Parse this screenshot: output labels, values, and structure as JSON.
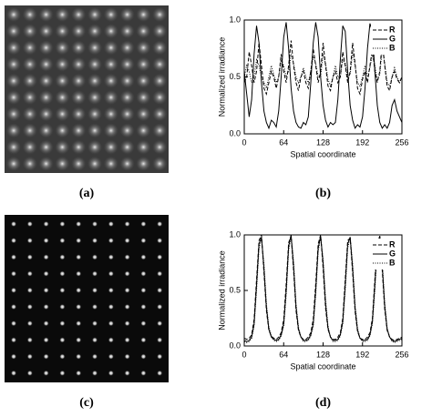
{
  "figures": [
    {
      "label": "(a)"
    },
    {
      "label": "(c)"
    }
  ],
  "chart_data": [
    {
      "type": "line",
      "label": "(b)",
      "ylabel": "Normalized irradiance",
      "xlabel": "Spatial coordinate",
      "xlim": [
        0,
        256
      ],
      "xticks": [
        0,
        64,
        128,
        192,
        256
      ],
      "ylim": [
        0,
        1
      ],
      "yticks": [
        {
          "value": 0,
          "label": "0.0"
        },
        {
          "value": 0.5,
          "label": "0.5"
        },
        {
          "value": 1,
          "label": "1.0"
        }
      ],
      "legend": "upper right",
      "x": [
        0,
        4,
        8,
        12,
        16,
        20,
        24,
        28,
        32,
        36,
        40,
        44,
        48,
        52,
        56,
        60,
        64,
        68,
        72,
        76,
        80,
        84,
        88,
        92,
        96,
        100,
        104,
        108,
        112,
        116,
        120,
        124,
        128,
        132,
        136,
        140,
        144,
        148,
        152,
        156,
        160,
        164,
        168,
        172,
        176,
        180,
        184,
        188,
        192,
        196,
        200,
        204,
        208,
        212,
        216,
        220,
        224,
        228,
        232,
        236,
        240,
        244,
        248,
        252,
        256
      ],
      "series": [
        {
          "name": "R",
          "color": "#000000",
          "style": "dashed",
          "values": [
            0.45,
            0.5,
            0.72,
            0.6,
            0.45,
            0.55,
            0.8,
            0.6,
            0.4,
            0.35,
            0.45,
            0.55,
            0.5,
            0.4,
            0.5,
            0.7,
            0.55,
            0.45,
            0.6,
            0.82,
            0.6,
            0.45,
            0.38,
            0.5,
            0.55,
            0.45,
            0.4,
            0.55,
            0.75,
            0.6,
            0.45,
            0.55,
            0.8,
            0.6,
            0.42,
            0.38,
            0.5,
            0.55,
            0.45,
            0.5,
            0.72,
            0.6,
            0.45,
            0.55,
            0.8,
            0.62,
            0.4,
            0.35,
            0.48,
            0.55,
            0.45,
            0.6,
            0.75,
            0.55,
            0.45,
            0.55,
            0.82,
            0.6,
            0.42,
            0.38,
            0.5,
            0.55,
            0.48,
            0.45,
            0.5
          ]
        },
        {
          "name": "G",
          "color": "#000000",
          "style": "solid",
          "values": [
            0.55,
            0.35,
            0.15,
            0.3,
            0.7,
            0.95,
            0.8,
            0.45,
            0.2,
            0.1,
            0.05,
            0.12,
            0.1,
            0.06,
            0.2,
            0.5,
            0.85,
            0.98,
            0.75,
            0.4,
            0.2,
            0.1,
            0.06,
            0.05,
            0.1,
            0.08,
            0.15,
            0.45,
            0.8,
            0.98,
            0.85,
            0.5,
            0.25,
            0.12,
            0.06,
            0.1,
            0.08,
            0.1,
            0.3,
            0.65,
            0.95,
            0.9,
            0.55,
            0.25,
            0.12,
            0.05,
            0.08,
            0.06,
            0.15,
            0.4,
            0.75,
            0.97,
            0.9,
            0.55,
            0.25,
            0.1,
            0.05,
            0.08,
            0.05,
            0.1,
            0.25,
            0.3,
            0.2,
            0.15,
            0.1
          ]
        },
        {
          "name": "B",
          "color": "#000000",
          "style": "dotted",
          "values": [
            0.5,
            0.6,
            0.55,
            0.45,
            0.5,
            0.65,
            0.6,
            0.5,
            0.45,
            0.4,
            0.5,
            0.6,
            0.52,
            0.45,
            0.5,
            0.65,
            0.6,
            0.5,
            0.55,
            0.7,
            0.62,
            0.5,
            0.45,
            0.5,
            0.58,
            0.5,
            0.45,
            0.55,
            0.68,
            0.62,
            0.5,
            0.5,
            0.7,
            0.62,
            0.48,
            0.42,
            0.5,
            0.6,
            0.5,
            0.5,
            0.65,
            0.62,
            0.5,
            0.52,
            0.72,
            0.6,
            0.45,
            0.42,
            0.5,
            0.6,
            0.5,
            0.58,
            0.7,
            0.6,
            0.48,
            0.52,
            0.75,
            0.62,
            0.45,
            0.42,
            0.5,
            0.58,
            0.5,
            0.45,
            0.5
          ]
        }
      ]
    },
    {
      "type": "line",
      "label": "(d)",
      "ylabel": "Normalized irradiance",
      "xlabel": "Spatial coordinate",
      "xlim": [
        0,
        256
      ],
      "xticks": [
        0,
        64,
        128,
        192,
        256
      ],
      "ylim": [
        0,
        1
      ],
      "yticks": [
        {
          "value": 0,
          "label": "0.0"
        },
        {
          "value": 0.5,
          "label": "0.5"
        },
        {
          "value": 1,
          "label": "1.0"
        }
      ],
      "legend": "upper right",
      "x": [
        0,
        4,
        8,
        12,
        16,
        20,
        24,
        28,
        32,
        36,
        40,
        44,
        48,
        52,
        56,
        60,
        64,
        68,
        72,
        76,
        80,
        84,
        88,
        92,
        96,
        100,
        104,
        108,
        112,
        116,
        120,
        124,
        128,
        132,
        136,
        140,
        144,
        148,
        152,
        156,
        160,
        164,
        168,
        172,
        176,
        180,
        184,
        188,
        192,
        196,
        200,
        204,
        208,
        212,
        216,
        220,
        224,
        228,
        232,
        236,
        240,
        244,
        248,
        252,
        256
      ],
      "series": [
        {
          "name": "R",
          "color": "#000000",
          "style": "dashed",
          "values": [
            0.07,
            0.06,
            0.07,
            0.1,
            0.24,
            0.6,
            0.95,
            1.0,
            0.66,
            0.32,
            0.14,
            0.09,
            0.07,
            0.06,
            0.08,
            0.12,
            0.24,
            0.56,
            0.93,
            0.99,
            0.68,
            0.32,
            0.14,
            0.08,
            0.06,
            0.06,
            0.08,
            0.12,
            0.24,
            0.56,
            0.92,
            1.0,
            0.7,
            0.34,
            0.15,
            0.08,
            0.06,
            0.06,
            0.08,
            0.12,
            0.25,
            0.6,
            0.95,
            0.97,
            0.66,
            0.31,
            0.13,
            0.07,
            0.06,
            0.06,
            0.08,
            0.12,
            0.25,
            0.6,
            0.95,
            0.98,
            0.68,
            0.33,
            0.14,
            0.08,
            0.06,
            0.05,
            0.06,
            0.07,
            0.08
          ]
        },
        {
          "name": "G",
          "color": "#000000",
          "style": "solid",
          "values": [
            0.05,
            0.04,
            0.05,
            0.08,
            0.2,
            0.55,
            0.92,
            0.98,
            0.7,
            0.35,
            0.15,
            0.08,
            0.06,
            0.05,
            0.06,
            0.1,
            0.2,
            0.5,
            0.9,
            1.0,
            0.72,
            0.35,
            0.15,
            0.08,
            0.05,
            0.05,
            0.06,
            0.1,
            0.2,
            0.5,
            0.88,
            0.99,
            0.75,
            0.38,
            0.16,
            0.08,
            0.05,
            0.05,
            0.06,
            0.1,
            0.22,
            0.55,
            0.92,
            0.98,
            0.7,
            0.34,
            0.14,
            0.07,
            0.05,
            0.05,
            0.06,
            0.1,
            0.22,
            0.55,
            0.92,
            0.99,
            0.72,
            0.36,
            0.15,
            0.08,
            0.05,
            0.04,
            0.05,
            0.06,
            0.07
          ]
        },
        {
          "name": "B",
          "color": "#000000",
          "style": "dotted",
          "values": [
            0.04,
            0.03,
            0.04,
            0.07,
            0.18,
            0.5,
            0.88,
            0.97,
            0.74,
            0.38,
            0.17,
            0.09,
            0.05,
            0.04,
            0.05,
            0.09,
            0.18,
            0.46,
            0.86,
            0.99,
            0.76,
            0.38,
            0.17,
            0.08,
            0.04,
            0.04,
            0.05,
            0.09,
            0.18,
            0.46,
            0.85,
            0.98,
            0.78,
            0.42,
            0.18,
            0.08,
            0.04,
            0.04,
            0.05,
            0.09,
            0.2,
            0.5,
            0.88,
            0.98,
            0.74,
            0.37,
            0.16,
            0.07,
            0.04,
            0.04,
            0.05,
            0.09,
            0.2,
            0.5,
            0.88,
            0.98,
            0.76,
            0.39,
            0.16,
            0.08,
            0.04,
            0.03,
            0.04,
            0.05,
            0.06
          ]
        }
      ]
    }
  ]
}
